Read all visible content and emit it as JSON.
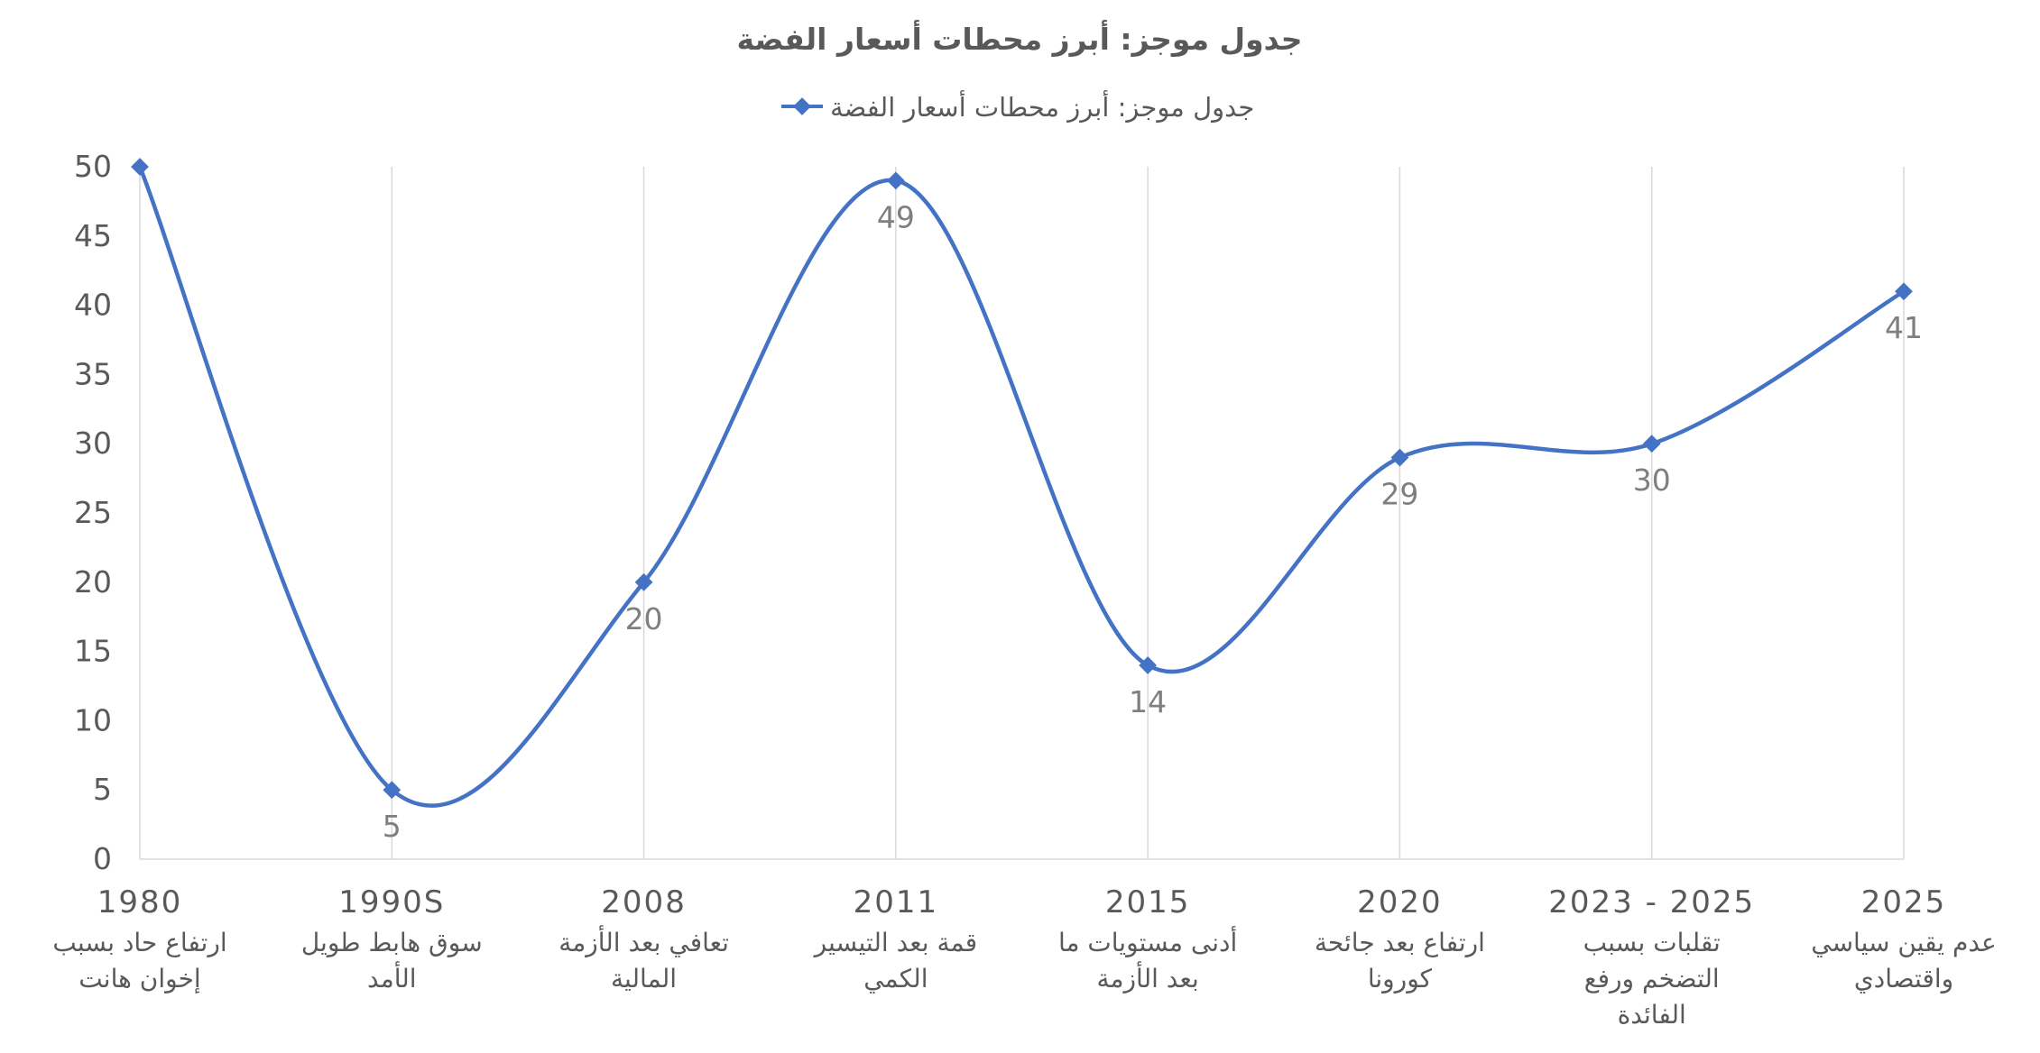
{
  "chart_data": {
    "type": "line",
    "title": "جدول موجز: أبرز محطات أسعار الفضة",
    "legend_position": "top",
    "smooth": true,
    "grid": "vertical",
    "colors": {
      "series": "#4472C4",
      "title": "#595959",
      "axis_text": "#595959",
      "data_label": "#7F7F7F",
      "gridline": "#D9D9D9",
      "axis_line": "#D9D9D9"
    },
    "ylim": [
      0,
      50
    ],
    "yticks": [
      "0",
      "5",
      "10",
      "15",
      "20",
      "25",
      "30",
      "35",
      "40",
      "45",
      "50"
    ],
    "categories": [
      {
        "year": "1980",
        "desc": [
          "ارتفاع حاد بسبب",
          "إخوان هانت"
        ]
      },
      {
        "year": "1990S",
        "desc": [
          "سوق هابط طويل",
          "الأمد"
        ]
      },
      {
        "year": "2008",
        "desc": [
          "تعافي بعد الأزمة",
          "المالية"
        ]
      },
      {
        "year": "2011",
        "desc": [
          "قمة بعد التيسير",
          "الكمي"
        ]
      },
      {
        "year": "2015",
        "desc": [
          "أدنى مستويات ما",
          "بعد الأزمة"
        ]
      },
      {
        "year": "2020",
        "desc": [
          "ارتفاع بعد جائحة",
          "كورونا"
        ]
      },
      {
        "year": "2023 - 2025",
        "desc": [
          "تقلبات بسبب",
          "التضخم ورفع",
          "الفائدة"
        ]
      },
      {
        "year": "2025",
        "desc": [
          "عدم يقين سياسي",
          "واقتصادي"
        ]
      }
    ],
    "series": [
      {
        "name": "جدول موجز: أبرز محطات أسعار الفضة",
        "values": [
          50,
          5,
          20,
          49,
          14,
          29,
          30,
          41
        ],
        "data_labels": [
          "",
          "5",
          "20",
          "49",
          "14",
          "29",
          "30",
          "41"
        ]
      }
    ]
  }
}
